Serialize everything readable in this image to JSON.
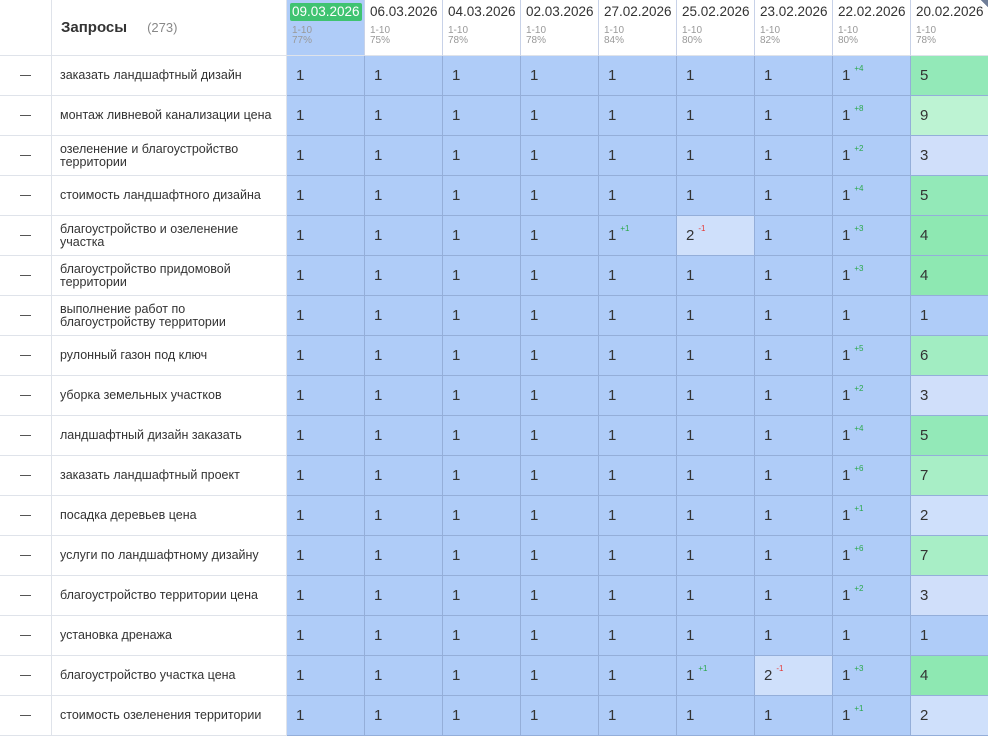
{
  "header": {
    "title": "Запросы",
    "count": "(273)",
    "dates": [
      {
        "date": "09.03.2026",
        "range": "1-10",
        "pct": "77%",
        "active": true
      },
      {
        "date": "06.03.2026",
        "range": "1-10",
        "pct": "75%"
      },
      {
        "date": "04.03.2026",
        "range": "1-10",
        "pct": "78%"
      },
      {
        "date": "02.03.2026",
        "range": "1-10",
        "pct": "78%"
      },
      {
        "date": "27.02.2026",
        "range": "1-10",
        "pct": "84%"
      },
      {
        "date": "25.02.2026",
        "range": "1-10",
        "pct": "80%"
      },
      {
        "date": "23.02.2026",
        "range": "1-10",
        "pct": "82%"
      },
      {
        "date": "22.02.2026",
        "range": "1-10",
        "pct": "80%"
      },
      {
        "date": "20.02.2026",
        "range": "1-10",
        "pct": "78%"
      }
    ]
  },
  "colors": {
    "active_date_bg": "#3fc371",
    "position_1": "#afccf8",
    "position_2": "#cfe0fb",
    "position_3": "#d0dffa",
    "position_4": "#8ee8b2",
    "position_5": "#93e9b8",
    "position_6": "#a2edc2",
    "position_7": "#a8eec6",
    "position_9": "#bdf3d3",
    "delta_up": "#2aa84a",
    "delta_down": "#e53935"
  },
  "rows": [
    {
      "query": "заказать ландшафтный дизайн",
      "cells": [
        {
          "v": "1"
        },
        {
          "v": "1"
        },
        {
          "v": "1"
        },
        {
          "v": "1"
        },
        {
          "v": "1"
        },
        {
          "v": "1"
        },
        {
          "v": "1"
        },
        {
          "v": "1",
          "d": "+4",
          "corner": true
        },
        {
          "v": "5"
        }
      ]
    },
    {
      "query": "монтаж ливневой канализации цена",
      "cells": [
        {
          "v": "1"
        },
        {
          "v": "1"
        },
        {
          "v": "1"
        },
        {
          "v": "1"
        },
        {
          "v": "1"
        },
        {
          "v": "1"
        },
        {
          "v": "1"
        },
        {
          "v": "1",
          "d": "+8"
        },
        {
          "v": "9"
        }
      ]
    },
    {
      "query": "озеленение и благоустройство территории",
      "cells": [
        {
          "v": "1"
        },
        {
          "v": "1"
        },
        {
          "v": "1"
        },
        {
          "v": "1",
          "corner": true
        },
        {
          "v": "1"
        },
        {
          "v": "1"
        },
        {
          "v": "1"
        },
        {
          "v": "1",
          "d": "+2"
        },
        {
          "v": "3"
        }
      ]
    },
    {
      "query": "стоимость ландшафтного дизайна",
      "cells": [
        {
          "v": "1"
        },
        {
          "v": "1"
        },
        {
          "v": "1"
        },
        {
          "v": "1"
        },
        {
          "v": "1"
        },
        {
          "v": "1"
        },
        {
          "v": "1"
        },
        {
          "v": "1",
          "d": "+4"
        },
        {
          "v": "5"
        }
      ]
    },
    {
      "query": "благоустройство и озеленение участка",
      "cells": [
        {
          "v": "1"
        },
        {
          "v": "1"
        },
        {
          "v": "1"
        },
        {
          "v": "1"
        },
        {
          "v": "1",
          "d": "+1"
        },
        {
          "v": "2",
          "d": "-1",
          "corner": true
        },
        {
          "v": "1",
          "corner": true
        },
        {
          "v": "1",
          "d": "+3"
        },
        {
          "v": "4"
        }
      ]
    },
    {
      "query": "благоустройство придомовой территории",
      "cells": [
        {
          "v": "1"
        },
        {
          "v": "1"
        },
        {
          "v": "1"
        },
        {
          "v": "1"
        },
        {
          "v": "1"
        },
        {
          "v": "1"
        },
        {
          "v": "1"
        },
        {
          "v": "1",
          "d": "+3",
          "corner": true
        },
        {
          "v": "4"
        }
      ]
    },
    {
      "query": "выполнение работ по благоустройству территории",
      "cells": [
        {
          "v": "1"
        },
        {
          "v": "1"
        },
        {
          "v": "1"
        },
        {
          "v": "1"
        },
        {
          "v": "1"
        },
        {
          "v": "1"
        },
        {
          "v": "1"
        },
        {
          "v": "1"
        },
        {
          "v": "1"
        }
      ]
    },
    {
      "query": "рулонный газон под ключ",
      "cells": [
        {
          "v": "1"
        },
        {
          "v": "1"
        },
        {
          "v": "1"
        },
        {
          "v": "1"
        },
        {
          "v": "1"
        },
        {
          "v": "1"
        },
        {
          "v": "1"
        },
        {
          "v": "1",
          "d": "+5"
        },
        {
          "v": "6"
        }
      ]
    },
    {
      "query": "уборка земельных участков",
      "cells": [
        {
          "v": "1"
        },
        {
          "v": "1"
        },
        {
          "v": "1"
        },
        {
          "v": "1"
        },
        {
          "v": "1"
        },
        {
          "v": "1"
        },
        {
          "v": "1"
        },
        {
          "v": "1",
          "d": "+2"
        },
        {
          "v": "3"
        }
      ]
    },
    {
      "query": "ландшафтный дизайн заказать",
      "cells": [
        {
          "v": "1"
        },
        {
          "v": "1"
        },
        {
          "v": "1"
        },
        {
          "v": "1"
        },
        {
          "v": "1"
        },
        {
          "v": "1"
        },
        {
          "v": "1"
        },
        {
          "v": "1",
          "d": "+4"
        },
        {
          "v": "5"
        }
      ]
    },
    {
      "query": "заказать ландшафтный проект",
      "cells": [
        {
          "v": "1"
        },
        {
          "v": "1"
        },
        {
          "v": "1"
        },
        {
          "v": "1"
        },
        {
          "v": "1"
        },
        {
          "v": "1"
        },
        {
          "v": "1"
        },
        {
          "v": "1",
          "d": "+6",
          "corner": true
        },
        {
          "v": "7"
        }
      ]
    },
    {
      "query": "посадка деревьев цена",
      "cells": [
        {
          "v": "1"
        },
        {
          "v": "1"
        },
        {
          "v": "1"
        },
        {
          "v": "1"
        },
        {
          "v": "1"
        },
        {
          "v": "1"
        },
        {
          "v": "1"
        },
        {
          "v": "1",
          "d": "+1"
        },
        {
          "v": "2"
        }
      ]
    },
    {
      "query": "услуги по ландшафтному дизайну",
      "cells": [
        {
          "v": "1"
        },
        {
          "v": "1"
        },
        {
          "v": "1"
        },
        {
          "v": "1"
        },
        {
          "v": "1"
        },
        {
          "v": "1"
        },
        {
          "v": "1"
        },
        {
          "v": "1",
          "d": "+6"
        },
        {
          "v": "7"
        }
      ]
    },
    {
      "query": "благоустройство территории цена",
      "cells": [
        {
          "v": "1"
        },
        {
          "v": "1"
        },
        {
          "v": "1"
        },
        {
          "v": "1"
        },
        {
          "v": "1"
        },
        {
          "v": "1"
        },
        {
          "v": "1"
        },
        {
          "v": "1",
          "d": "+2"
        },
        {
          "v": "3"
        }
      ]
    },
    {
      "query": "установка дренажа",
      "cells": [
        {
          "v": "1"
        },
        {
          "v": "1"
        },
        {
          "v": "1"
        },
        {
          "v": "1"
        },
        {
          "v": "1"
        },
        {
          "v": "1"
        },
        {
          "v": "1"
        },
        {
          "v": "1"
        },
        {
          "v": "1"
        }
      ]
    },
    {
      "query": "благоустройство участка цена",
      "cells": [
        {
          "v": "1"
        },
        {
          "v": "1"
        },
        {
          "v": "1"
        },
        {
          "v": "1"
        },
        {
          "v": "1"
        },
        {
          "v": "1",
          "d": "+1"
        },
        {
          "v": "2",
          "d": "-1"
        },
        {
          "v": "1",
          "d": "+3"
        },
        {
          "v": "4"
        }
      ]
    },
    {
      "query": "стоимость озеленения территории",
      "cells": [
        {
          "v": "1"
        },
        {
          "v": "1"
        },
        {
          "v": "1"
        },
        {
          "v": "1"
        },
        {
          "v": "1"
        },
        {
          "v": "1"
        },
        {
          "v": "1"
        },
        {
          "v": "1",
          "d": "+1"
        },
        {
          "v": "2"
        }
      ]
    }
  ]
}
